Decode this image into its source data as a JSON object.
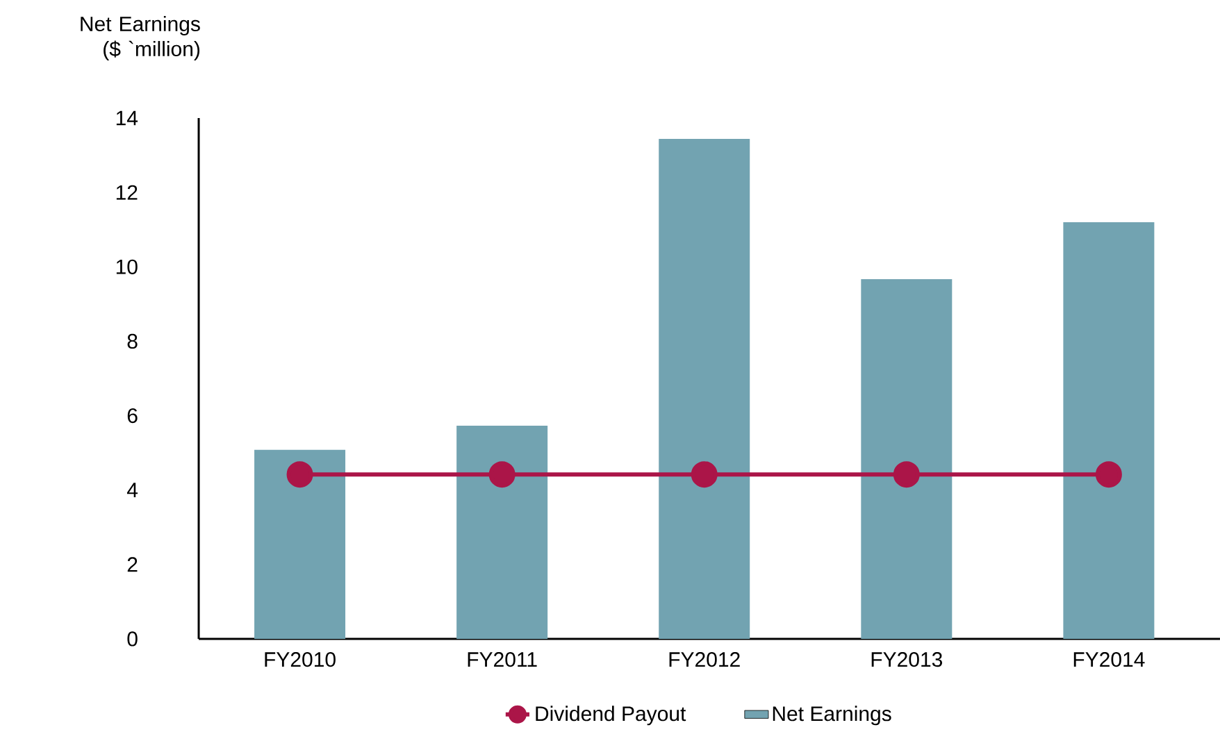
{
  "chart_data": {
    "type": "bar",
    "ylabel": "Net Earnings ($ `million)",
    "categories": [
      "FY2010",
      "FY2011",
      "FY2012",
      "FY2013",
      "FY2014"
    ],
    "series": [
      {
        "name": "Dividend Payout",
        "type": "line",
        "color": "#ab1548",
        "marker": "circle",
        "values": [
          4.42,
          4.42,
          4.42,
          4.42,
          4.42
        ]
      },
      {
        "name": "Net Earnings",
        "color": "#72a3b1",
        "values": [
          5.08,
          5.73,
          13.44,
          9.67,
          11.2
        ]
      }
    ],
    "ylim": [
      0,
      14
    ],
    "yticks": [
      0,
      2,
      4,
      6,
      8,
      10,
      12,
      14
    ],
    "grid": false,
    "legend": "bottom"
  }
}
